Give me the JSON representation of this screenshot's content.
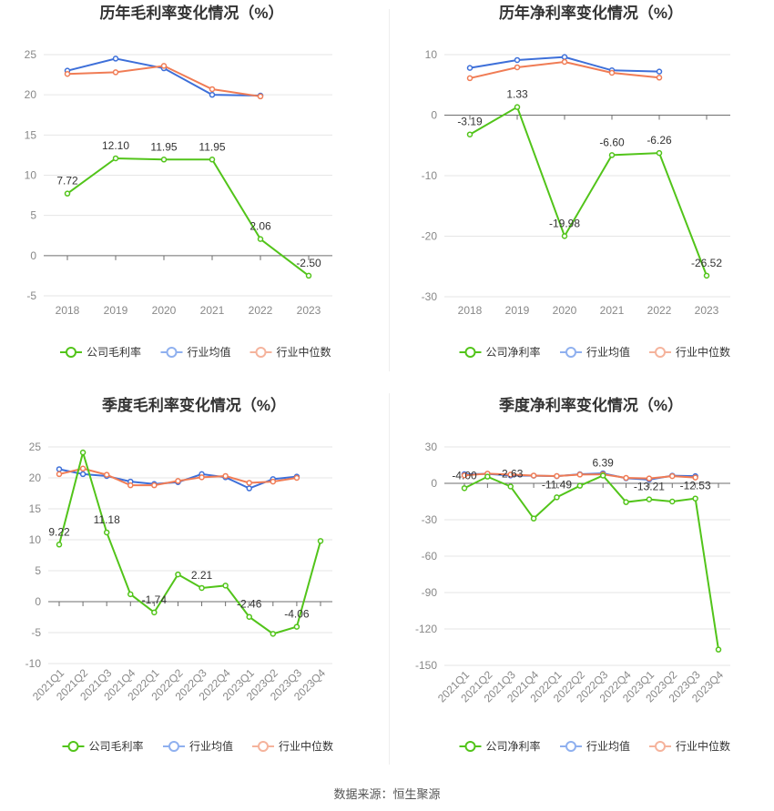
{
  "source_label": "数据来源：恒生聚源",
  "chart_data": [
    {
      "type": "line",
      "title": "历年毛利率变化情况（%）",
      "categories": [
        "2018",
        "2019",
        "2020",
        "2021",
        "2022",
        "2023"
      ],
      "ylim": [
        -5,
        25
      ],
      "yticks": [
        -5,
        0,
        5,
        10,
        15,
        20,
        25
      ],
      "grid": true,
      "legend_position": "bottom",
      "series": [
        {
          "name": "公司毛利率",
          "color": "#52c41a",
          "values": [
            7.72,
            12.1,
            11.95,
            11.95,
            2.06,
            -2.5
          ],
          "labels": [
            "7.72",
            "12.10",
            "11.95",
            "11.95",
            "2.06",
            "-2.50"
          ]
        },
        {
          "name": "行业均值",
          "color": "#3d6fd9",
          "values": [
            23.0,
            24.5,
            23.3,
            20.0,
            19.9,
            null
          ]
        },
        {
          "name": "行业中位数",
          "color": "#f07c55",
          "values": [
            22.6,
            22.8,
            23.6,
            20.7,
            19.8,
            null
          ]
        }
      ]
    },
    {
      "type": "line",
      "title": "历年净利率变化情况（%）",
      "categories": [
        "2018",
        "2019",
        "2020",
        "2021",
        "2022",
        "2023"
      ],
      "ylim": [
        -30,
        10
      ],
      "yticks": [
        -30,
        -20,
        -10,
        0,
        10
      ],
      "grid": true,
      "legend_position": "bottom",
      "series": [
        {
          "name": "公司净利率",
          "color": "#52c41a",
          "values": [
            -3.19,
            1.33,
            -19.98,
            -6.6,
            -6.26,
            -26.52
          ],
          "labels": [
            "-3.19",
            "1.33",
            "-19.98",
            "-6.60",
            "-6.26",
            "-26.52"
          ]
        },
        {
          "name": "行业均值",
          "color": "#3d6fd9",
          "values": [
            7.8,
            9.1,
            9.6,
            7.4,
            7.2,
            null
          ]
        },
        {
          "name": "行业中位数",
          "color": "#f07c55",
          "values": [
            6.1,
            7.9,
            8.8,
            7.0,
            6.2,
            null
          ]
        }
      ]
    },
    {
      "type": "line",
      "title": "季度毛利率变化情况（%）",
      "categories": [
        "2021Q1",
        "2021Q2",
        "2021Q3",
        "2021Q4",
        "2022Q1",
        "2022Q2",
        "2022Q3",
        "2022Q4",
        "2023Q1",
        "2023Q2",
        "2023Q3",
        "2023Q4"
      ],
      "ylim": [
        -10,
        25
      ],
      "yticks": [
        -10,
        -5,
        0,
        5,
        10,
        15,
        20,
        25
      ],
      "grid": true,
      "legend_position": "bottom",
      "series": [
        {
          "name": "公司毛利率",
          "color": "#52c41a",
          "values": [
            9.22,
            24.1,
            11.18,
            1.2,
            -1.74,
            4.4,
            2.21,
            2.6,
            -2.46,
            -5.2,
            -4.06,
            9.8
          ],
          "labels": [
            "9.22",
            "",
            "11.18",
            "",
            "-1.74",
            "",
            "2.21",
            "",
            "-2.46",
            "",
            "-4.06",
            ""
          ]
        },
        {
          "name": "行业均值",
          "color": "#3d6fd9",
          "values": [
            21.4,
            20.6,
            20.3,
            19.4,
            19.0,
            19.3,
            20.6,
            20.1,
            18.3,
            19.8,
            20.2,
            null
          ]
        },
        {
          "name": "行业中位数",
          "color": "#f07c55",
          "values": [
            20.6,
            21.5,
            20.5,
            18.8,
            18.8,
            19.5,
            20.1,
            20.3,
            19.2,
            19.4,
            20.0,
            null
          ]
        }
      ]
    },
    {
      "type": "line",
      "title": "季度净利率变化情况（%）",
      "categories": [
        "2021Q1",
        "2021Q2",
        "2021Q3",
        "2021Q4",
        "2022Q1",
        "2022Q2",
        "2022Q3",
        "2022Q4",
        "2023Q1",
        "2023Q2",
        "2023Q3",
        "2023Q4"
      ],
      "ylim": [
        -150,
        30
      ],
      "yticks": [
        -150,
        -120,
        -90,
        -60,
        -30,
        0,
        30
      ],
      "grid": true,
      "legend_position": "bottom",
      "series": [
        {
          "name": "公司净利率",
          "color": "#52c41a",
          "values": [
            -4.0,
            5.5,
            -2.63,
            -29.0,
            -11.49,
            -2.0,
            6.39,
            -15.5,
            -13.21,
            -15.0,
            -12.53,
            -137.0
          ],
          "labels": [
            "-4.00",
            "",
            "-2.63",
            "",
            "-11.49",
            "",
            "6.39",
            "",
            "-13.21",
            "",
            "-12.53",
            ""
          ]
        },
        {
          "name": "行业均值",
          "color": "#3d6fd9",
          "values": [
            7.5,
            7.8,
            6.5,
            6.3,
            5.9,
            7.5,
            8.2,
            4.2,
            3.1,
            6.3,
            5.9,
            null
          ]
        },
        {
          "name": "行业中位数",
          "color": "#f07c55",
          "values": [
            6.6,
            8.0,
            7.2,
            6.4,
            6.0,
            7.2,
            7.4,
            4.5,
            4.0,
            5.9,
            4.8,
            null
          ]
        }
      ]
    }
  ]
}
